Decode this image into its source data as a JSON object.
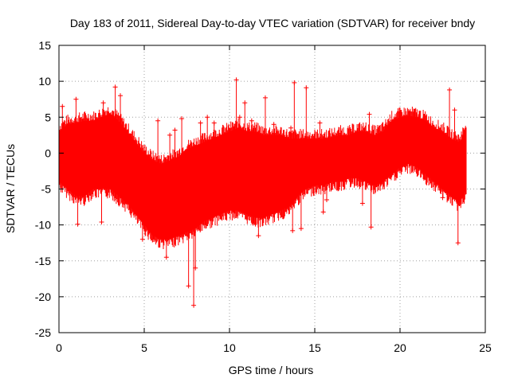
{
  "chart_data": {
    "type": "scatter",
    "title": "Day 183 of 2011, Sidereal Day-to-day VTEC variation (SDTVAR) for receiver bndy",
    "xlabel": "GPS time / hours",
    "ylabel": "SDTVAR / TECUs",
    "xlim": [
      0,
      25
    ],
    "ylim": [
      -25,
      15
    ],
    "xticks": [
      0,
      5,
      10,
      15,
      20,
      25
    ],
    "yticks": [
      15,
      10,
      5,
      0,
      -5,
      -10,
      -15,
      -20,
      -25
    ],
    "grid": true,
    "marker": "+",
    "series_color": "#ff0000",
    "series": [
      {
        "name": "SDTVAR",
        "envelope_x": [
          0,
          0.5,
          1,
          1.5,
          2,
          2.5,
          3,
          3.5,
          4,
          4.5,
          5,
          5.5,
          6,
          6.5,
          7,
          7.5,
          8,
          8.5,
          9,
          9.5,
          10,
          10.5,
          11,
          11.5,
          12,
          12.5,
          13,
          13.5,
          14,
          14.5,
          15,
          15.5,
          16,
          16.5,
          17,
          17.5,
          18,
          18.5,
          19,
          19.5,
          20,
          20.5,
          21,
          21.5,
          22,
          22.5,
          23,
          23.5,
          23.9
        ],
        "envelope_upper": [
          3,
          4,
          4.2,
          4.5,
          4.5,
          5,
          5.5,
          4.5,
          3,
          1.5,
          0,
          -1,
          -1.5,
          -1,
          -0.5,
          0.5,
          1,
          1.5,
          2,
          2.5,
          3,
          3.5,
          3,
          3,
          2.5,
          2.5,
          2.5,
          2,
          2,
          2,
          2,
          2,
          2.2,
          2.5,
          2.5,
          3,
          3,
          2.5,
          3,
          4.5,
          5,
          5.2,
          5,
          4.5,
          3.5,
          3,
          2,
          1.5,
          3.5
        ],
        "envelope_lower": [
          -4,
          -5,
          -6,
          -6,
          -5,
          -5,
          -5,
          -6,
          -7,
          -8.5,
          -10,
          -11.5,
          -12,
          -12,
          -11.5,
          -11,
          -10.5,
          -9.5,
          -9,
          -8.5,
          -8,
          -8,
          -8.5,
          -9,
          -9,
          -8.5,
          -8,
          -7.5,
          -6,
          -5,
          -4.5,
          -4.5,
          -4,
          -4,
          -3.5,
          -3.5,
          -4,
          -4.5,
          -4,
          -3,
          -2,
          -1.5,
          -2,
          -3,
          -4,
          -5,
          -6,
          -7,
          -5
        ],
        "outliers": [
          {
            "x": 0.2,
            "y": 6.5
          },
          {
            "x": 1.1,
            "y": -9.9
          },
          {
            "x": 1.0,
            "y": 7.5
          },
          {
            "x": 2.5,
            "y": -9.6
          },
          {
            "x": 2.6,
            "y": 7.0
          },
          {
            "x": 3.3,
            "y": 9.2
          },
          {
            "x": 3.6,
            "y": 8.0
          },
          {
            "x": 5.8,
            "y": 4.5
          },
          {
            "x": 4.9,
            "y": -12.0
          },
          {
            "x": 6.5,
            "y": 2.5
          },
          {
            "x": 6.8,
            "y": 3.2
          },
          {
            "x": 6.3,
            "y": -14.5
          },
          {
            "x": 7.6,
            "y": -18.5
          },
          {
            "x": 7.9,
            "y": -21.2
          },
          {
            "x": 8.0,
            "y": -16.0
          },
          {
            "x": 7.2,
            "y": 4.8
          },
          {
            "x": 8.3,
            "y": 4.2
          },
          {
            "x": 8.7,
            "y": 5.0
          },
          {
            "x": 9.1,
            "y": 4.2
          },
          {
            "x": 10.4,
            "y": 10.2
          },
          {
            "x": 10.6,
            "y": 5.0
          },
          {
            "x": 10.9,
            "y": 7.0
          },
          {
            "x": 11.3,
            "y": 4.5
          },
          {
            "x": 12.1,
            "y": 7.7
          },
          {
            "x": 11.7,
            "y": -11.5
          },
          {
            "x": 12.6,
            "y": 4.0
          },
          {
            "x": 13.8,
            "y": 9.8
          },
          {
            "x": 14.5,
            "y": 9.1
          },
          {
            "x": 13.7,
            "y": -10.8
          },
          {
            "x": 14.2,
            "y": -10.5
          },
          {
            "x": 13.6,
            "y": 3.5
          },
          {
            "x": 15.3,
            "y": 4.2
          },
          {
            "x": 15.7,
            "y": -6.5
          },
          {
            "x": 15.5,
            "y": -8.2
          },
          {
            "x": 18.2,
            "y": 5.4
          },
          {
            "x": 18.3,
            "y": -10.3
          },
          {
            "x": 17.8,
            "y": -7.0
          },
          {
            "x": 22.5,
            "y": -6.2
          },
          {
            "x": 22.9,
            "y": 8.8
          },
          {
            "x": 23.4,
            "y": -12.5
          },
          {
            "x": 23.2,
            "y": 6.0
          }
        ]
      }
    ]
  }
}
